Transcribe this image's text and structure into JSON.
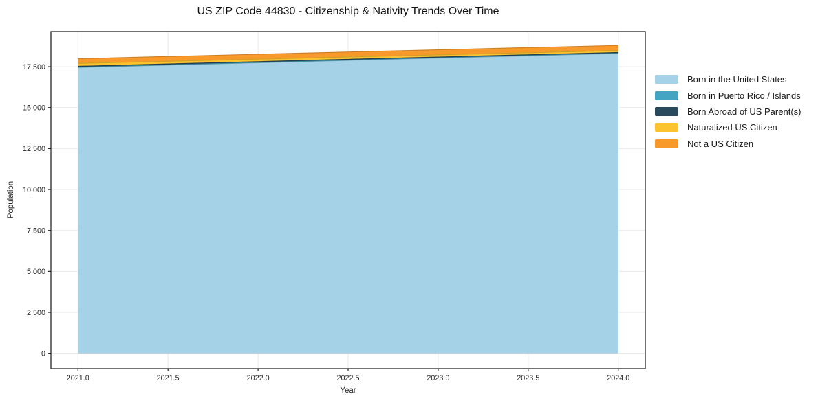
{
  "figure": {
    "title": "US ZIP Code 44830 - Citizenship & Nativity Trends Over Time",
    "xlabel": "Year",
    "ylabel": "Population",
    "background": "#ffffff"
  },
  "style": {
    "grid_color": "#e9e9e9",
    "spine_color": "#262626",
    "tick_color": "#262626",
    "tick_label_color": "#262626",
    "title_color": "#111111"
  },
  "chart_data": {
    "type": "area",
    "stacked": true,
    "title": "US ZIP Code 44830 - Citizenship & Nativity Trends Over Time",
    "xlabel": "Year",
    "ylabel": "Population",
    "x": [
      2021,
      2022,
      2023,
      2024
    ],
    "series": [
      {
        "name": "Born in the United States",
        "color": "#A6D2E7",
        "values": [
          17450,
          17735,
          18020,
          18300
        ]
      },
      {
        "name": "Born in Puerto Rico / Islands",
        "color": "#44A5C2",
        "values": [
          15,
          17,
          18,
          20
        ]
      },
      {
        "name": "Born Abroad of US Parent(s)",
        "color": "#29495C",
        "values": [
          60,
          55,
          50,
          45
        ]
      },
      {
        "name": "Naturalized US Citizen",
        "color": "#FDC32E",
        "values": [
          170,
          150,
          130,
          110
        ]
      },
      {
        "name": "Not a US Citizen",
        "color": "#F8992B",
        "values": [
          290,
          300,
          310,
          320
        ]
      }
    ],
    "x_ticks": [
      2021.0,
      2021.5,
      2022.0,
      2022.5,
      2023.0,
      2023.5,
      2024.0
    ],
    "x_tick_labels": [
      "2021.0",
      "2021.5",
      "2022.0",
      "2022.5",
      "2023.0",
      "2023.5",
      "2024.0"
    ],
    "y_ticks": [
      0,
      2500,
      5000,
      7500,
      10000,
      12500,
      15000,
      17500
    ],
    "y_tick_labels": [
      "0",
      "2,500",
      "5,000",
      "7,500",
      "10,000",
      "12,500",
      "15,000",
      "17,500"
    ],
    "xlim": [
      2020.85,
      2024.15
    ],
    "ylim": [
      -935,
      19640
    ],
    "grid": true,
    "legend_position": "right"
  }
}
